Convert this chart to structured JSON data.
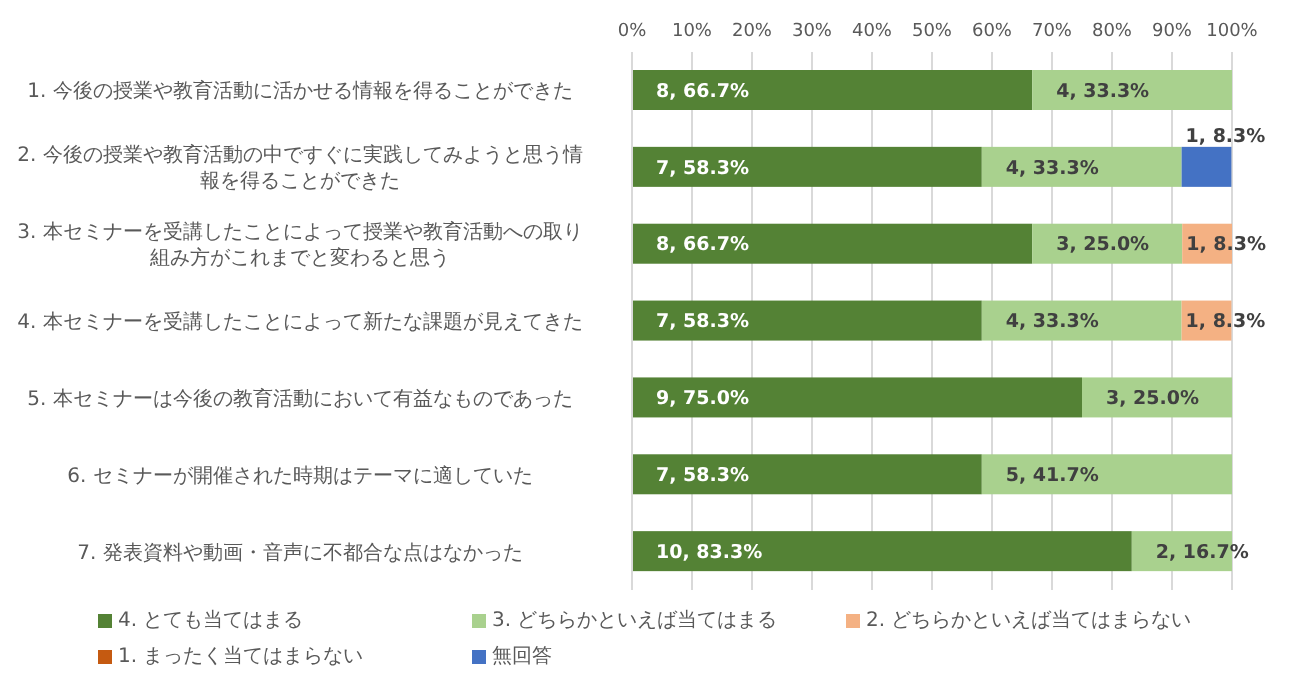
{
  "chart_data": {
    "type": "bar",
    "orientation": "horizontal",
    "stacked": true,
    "categories": [
      "1. 今後の授業や教育活動に活かせる情報を得ることができた",
      "2. 今後の授業や教育活動の中ですぐに実践してみようと思う情報を得ることができた",
      "3. 本セミナーを受講したことによって授業や教育活動への取り組み方がこれまでと変わると思う",
      "4. 本セミナーを受講したことによって新たな課題が見えてきた",
      "5. 本セミナーは今後の教育活動において有益なものであった",
      "6. セミナーが開催された時期はテーマに適していた",
      "7. 発表資料や動画・音声に不都合な点はなかった"
    ],
    "series": [
      {
        "name": "4. とても当てはまる",
        "color": "#548235",
        "values": [
          66.7,
          58.3,
          66.7,
          58.3,
          75.0,
          58.3,
          83.3
        ],
        "value_labels": [
          "8, 66.7%",
          "7, 58.3%",
          "8, 66.7%",
          "7, 58.3%",
          "9, 75.0%",
          "7, 58.3%",
          "10, 83.3%"
        ]
      },
      {
        "name": "3. どちらかといえば当てはまる",
        "color": "#a9d18e",
        "values": [
          33.3,
          33.3,
          25.0,
          33.3,
          25.0,
          41.7,
          16.7
        ],
        "value_labels": [
          "4, 33.3%",
          "4, 33.3%",
          "3, 25.0%",
          "4, 33.3%",
          "3, 25.0%",
          "5, 41.7%",
          "2, 16.7%"
        ]
      },
      {
        "name": "2. どちらかといえば当てはまらない",
        "color": "#f4b183",
        "values": [
          0,
          0,
          8.3,
          8.3,
          0,
          0,
          0
        ],
        "value_labels": [
          null,
          null,
          "1, 8.3%",
          "1, 8.3%",
          null,
          null,
          null
        ]
      },
      {
        "name": "1. まったく当てはまらない",
        "color": "#c55a11",
        "values": [
          0,
          0,
          0,
          0,
          0,
          0,
          0
        ],
        "value_labels": [
          null,
          null,
          null,
          null,
          null,
          null,
          null
        ]
      },
      {
        "name": "無回答",
        "color": "#4472c4",
        "values": [
          0,
          8.3,
          0,
          0,
          0,
          0,
          0
        ],
        "value_labels": [
          null,
          "1, 8.3%",
          null,
          null,
          null,
          null,
          null
        ]
      }
    ],
    "xlim": [
      0,
      100
    ],
    "xticks": [
      {
        "value": 0,
        "label": "0%"
      },
      {
        "value": 10,
        "label": "10%"
      },
      {
        "value": 20,
        "label": "20%"
      },
      {
        "value": 30,
        "label": "30%"
      },
      {
        "value": 40,
        "label": "40%"
      },
      {
        "value": 50,
        "label": "50%"
      },
      {
        "value": 60,
        "label": "60%"
      },
      {
        "value": 70,
        "label": "70%"
      },
      {
        "value": 80,
        "label": "80%"
      },
      {
        "value": 90,
        "label": "90%"
      },
      {
        "value": 100,
        "label": "100%"
      }
    ],
    "grid": "x",
    "legend": "bottom"
  }
}
